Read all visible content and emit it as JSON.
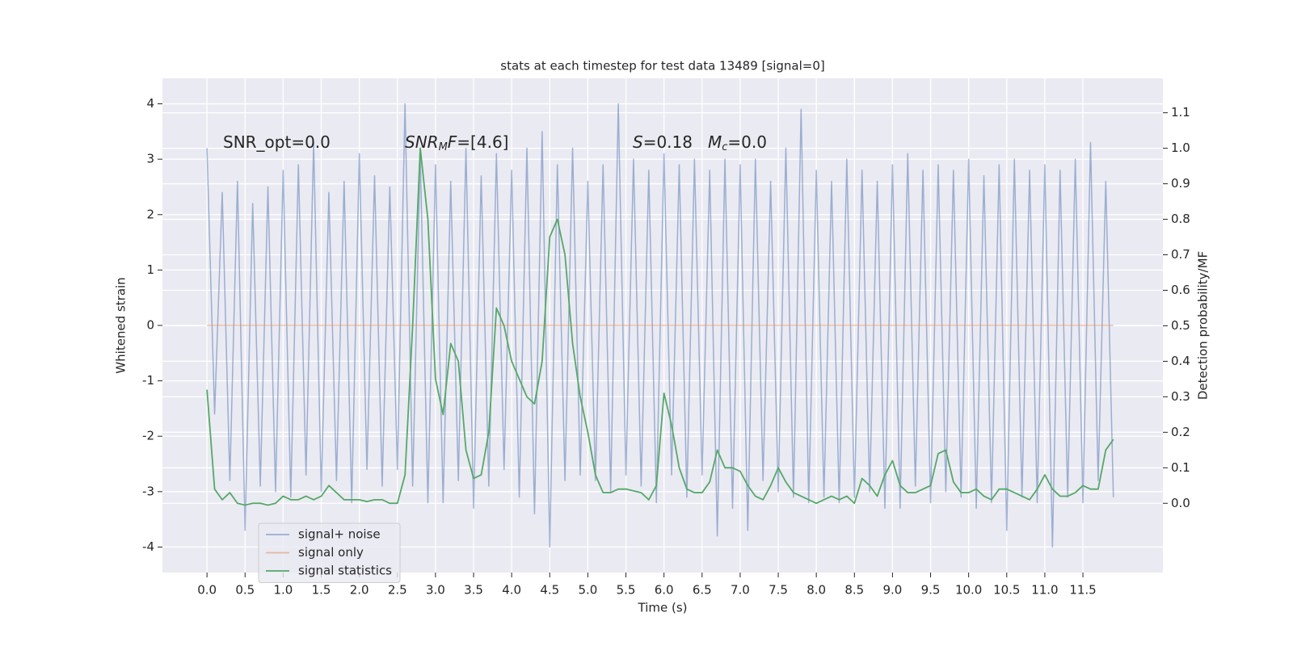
{
  "chart_data": {
    "type": "line",
    "title": "stats at each timestep for test data 13489 [signal=0]",
    "x_label": "Time (s)",
    "y_label": "Whitened strain",
    "y2_label": "Detection probability/MF",
    "annotations": [
      [
        {
          "text": "SNR_opt=0.0"
        }
      ],
      [
        {
          "text": "SNR",
          "math": true
        },
        {
          "text": "M",
          "math": true,
          "sub": true
        },
        {
          "text": "F",
          "math": true
        },
        {
          "text": "=[4.6]"
        }
      ],
      [
        {
          "text": "S",
          "math": true
        },
        {
          "text": "=0.18"
        }
      ],
      [
        {
          "text": "M",
          "math": true
        },
        {
          "text": "c",
          "math": true,
          "sub": true
        },
        {
          "text": "=0.0"
        }
      ]
    ],
    "x": [
      0.0,
      0.1,
      0.2,
      0.3,
      0.4,
      0.5,
      0.6,
      0.7,
      0.8,
      0.9,
      1.0,
      1.1,
      1.2,
      1.3,
      1.4,
      1.5,
      1.6,
      1.7,
      1.8,
      1.9,
      2.0,
      2.1,
      2.2,
      2.3,
      2.4,
      2.5,
      2.6,
      2.7,
      2.8,
      2.9,
      3.0,
      3.1,
      3.2,
      3.3,
      3.4,
      3.5,
      3.6,
      3.7,
      3.8,
      3.9,
      4.0,
      4.1,
      4.2,
      4.3,
      4.4,
      4.5,
      4.6,
      4.7,
      4.8,
      4.9,
      5.0,
      5.1,
      5.2,
      5.3,
      5.4,
      5.5,
      5.6,
      5.7,
      5.8,
      5.9,
      6.0,
      6.1,
      6.2,
      6.3,
      6.4,
      6.5,
      6.6,
      6.7,
      6.8,
      6.9,
      7.0,
      7.1,
      7.2,
      7.3,
      7.4,
      7.5,
      7.6,
      7.7,
      7.8,
      7.9,
      8.0,
      8.1,
      8.2,
      8.3,
      8.4,
      8.5,
      8.6,
      8.7,
      8.8,
      8.9,
      9.0,
      9.1,
      9.2,
      9.3,
      9.4,
      9.5,
      9.6,
      9.7,
      9.8,
      9.9,
      10.0,
      10.1,
      10.2,
      10.3,
      10.4,
      10.5,
      10.6,
      10.7,
      10.8,
      10.9,
      11.0,
      11.1,
      11.2,
      11.3,
      11.4,
      11.5,
      11.6,
      11.7,
      11.8,
      11.9
    ],
    "series": [
      {
        "name": "signal+ noise",
        "color": "#4c72b0",
        "opacity": 0.5,
        "values": [
          3.2,
          -1.6,
          2.4,
          -2.8,
          2.6,
          -3.7,
          2.2,
          -2.9,
          2.5,
          -3.0,
          2.8,
          -3.1,
          2.9,
          -2.7,
          3.3,
          -3.0,
          2.4,
          -2.8,
          2.6,
          -3.2,
          3.1,
          -2.6,
          2.7,
          -2.9,
          2.5,
          -2.6,
          4.0,
          -2.9,
          3.1,
          -3.2,
          2.9,
          -3.2,
          2.6,
          -2.8,
          3.2,
          -3.3,
          2.7,
          -2.9,
          3.1,
          -2.6,
          2.8,
          -3.1,
          3.2,
          -3.4,
          3.5,
          -4.0,
          2.9,
          -2.8,
          3.2,
          -2.7,
          2.6,
          -2.8,
          2.9,
          -3.0,
          4.0,
          -2.7,
          3.0,
          -2.9,
          2.8,
          -3.2,
          3.1,
          -2.7,
          2.9,
          -3.1,
          3.0,
          -2.7,
          2.8,
          -3.8,
          3.0,
          -3.3,
          2.9,
          -3.7,
          3.0,
          -2.8,
          2.6,
          -3.0,
          3.2,
          -3.1,
          3.9,
          -3.2,
          2.8,
          -3.1,
          2.6,
          -3.2,
          3.0,
          -3.1,
          2.8,
          -3.0,
          2.6,
          -3.3,
          2.9,
          -3.3,
          3.1,
          -2.9,
          2.8,
          -3.2,
          2.9,
          -3.0,
          2.8,
          -3.1,
          3.0,
          -3.3,
          2.7,
          -3.2,
          2.9,
          -3.7,
          3.0,
          -3.1,
          2.8,
          -3.2,
          2.9,
          -4.0,
          2.8,
          -3.1,
          3.0,
          -3.2,
          3.3,
          -2.8,
          2.6,
          -3.1
        ]
      },
      {
        "name": "signal only",
        "color": "#dd8452",
        "opacity": 0.5,
        "values": [
          0,
          0,
          0,
          0,
          0,
          0,
          0,
          0,
          0,
          0,
          0,
          0,
          0,
          0,
          0,
          0,
          0,
          0,
          0,
          0,
          0,
          0,
          0,
          0,
          0,
          0,
          0,
          0,
          0,
          0,
          0,
          0,
          0,
          0,
          0,
          0,
          0,
          0,
          0,
          0,
          0,
          0,
          0,
          0,
          0,
          0,
          0,
          0,
          0,
          0,
          0,
          0,
          0,
          0,
          0,
          0,
          0,
          0,
          0,
          0,
          0,
          0,
          0,
          0,
          0,
          0,
          0,
          0,
          0,
          0,
          0,
          0,
          0,
          0,
          0,
          0,
          0,
          0,
          0,
          0,
          0,
          0,
          0,
          0,
          0,
          0,
          0,
          0,
          0,
          0,
          0,
          0,
          0,
          0,
          0,
          0,
          0,
          0,
          0,
          0,
          0,
          0,
          0,
          0,
          0,
          0,
          0,
          0,
          0,
          0,
          0,
          0,
          0,
          0,
          0,
          0,
          0,
          0,
          0,
          0
        ]
      },
      {
        "name": "signal statistics",
        "color": "#55a868",
        "opacity": 1,
        "axis": "y2",
        "values": [
          0.32,
          0.04,
          0.01,
          0.03,
          0.0,
          -0.005,
          0.0,
          0.0,
          -0.005,
          0.0,
          0.02,
          0.01,
          0.01,
          0.02,
          0.01,
          0.02,
          0.05,
          0.03,
          0.01,
          0.01,
          0.01,
          0.005,
          0.01,
          0.01,
          0.0,
          0.0,
          0.08,
          0.5,
          1.0,
          0.8,
          0.35,
          0.25,
          0.45,
          0.4,
          0.15,
          0.07,
          0.08,
          0.2,
          0.55,
          0.5,
          0.4,
          0.35,
          0.3,
          0.28,
          0.4,
          0.75,
          0.8,
          0.7,
          0.45,
          0.3,
          0.2,
          0.08,
          0.03,
          0.03,
          0.04,
          0.04,
          0.035,
          0.03,
          0.01,
          0.05,
          0.31,
          0.22,
          0.1,
          0.04,
          0.03,
          0.03,
          0.06,
          0.15,
          0.1,
          0.1,
          0.09,
          0.05,
          0.02,
          0.01,
          0.05,
          0.1,
          0.06,
          0.03,
          0.02,
          0.01,
          0.0,
          0.01,
          0.02,
          0.01,
          0.02,
          0.0,
          0.07,
          0.05,
          0.02,
          0.08,
          0.12,
          0.05,
          0.03,
          0.03,
          0.04,
          0.05,
          0.14,
          0.15,
          0.06,
          0.03,
          0.03,
          0.04,
          0.02,
          0.01,
          0.04,
          0.04,
          0.03,
          0.02,
          0.01,
          0.04,
          0.08,
          0.04,
          0.02,
          0.02,
          0.03,
          0.05,
          0.04,
          0.04,
          0.15,
          0.18
        ]
      }
    ],
    "xlim": [
      -0.585,
      12.55
    ],
    "xticks": [
      {
        "value": 0,
        "label": "0.0"
      },
      0.5,
      {
        "value": 1,
        "label": "1.0"
      },
      1.5,
      {
        "value": 2,
        "label": "2.0"
      },
      2.5,
      {
        "value": 3,
        "label": "3.0"
      },
      3.5,
      {
        "value": 4,
        "label": "4.0"
      },
      4.5,
      {
        "value": 5,
        "label": "5.0"
      },
      5.5,
      {
        "value": 6,
        "label": "6.0"
      },
      6.5,
      {
        "value": 7,
        "label": "7.0"
      },
      7.5,
      {
        "value": 8,
        "label": "8.0"
      },
      8.5,
      {
        "value": 9,
        "label": "9.0"
      },
      9.5,
      {
        "value": 10,
        "label": "10.0"
      },
      10.5,
      {
        "value": 11,
        "label": "11.0"
      },
      11.5
    ],
    "ylim": [
      -4.46,
      4.46
    ],
    "yticks": [
      -4,
      -3,
      -2,
      -1,
      0,
      1,
      2,
      3,
      4
    ],
    "y2lim": [
      -0.195,
      1.197
    ],
    "y2ticks": [
      {
        "value": 0,
        "label": "0.0"
      },
      0.1,
      0.2,
      0.3,
      0.4,
      0.5,
      0.6,
      0.7,
      0.8,
      0.9,
      {
        "value": 1,
        "label": "1.0"
      },
      1.1
    ],
    "grid": true,
    "legend": "lower left"
  }
}
